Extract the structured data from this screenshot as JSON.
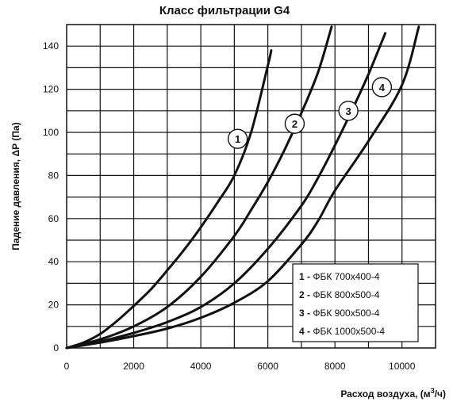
{
  "chart_data": {
    "type": "line",
    "title": "Класс фильтрации G4",
    "xlabel": "Расход воздуха, (м",
    "xlabel_sup": "3",
    "xlabel_end": "/ч)",
    "ylabel": "Падение давления, ΔР (Па)",
    "xlim": [
      0,
      11000
    ],
    "ylim": [
      0,
      150
    ],
    "x_ticks": [
      0,
      2000,
      4000,
      6000,
      8000,
      10000
    ],
    "y_ticks": [
      0,
      20,
      40,
      60,
      80,
      100,
      120,
      140
    ],
    "grid": true,
    "legend_position": "bottom-right",
    "series": [
      {
        "name": "ФБК 700х400-4",
        "legend_number": "1",
        "marker_label": "1",
        "marker_at": [
          5100,
          97
        ],
        "x": [
          0,
          500,
          1000,
          1500,
          2000,
          2500,
          3000,
          3500,
          4000,
          4500,
          5000,
          5500,
          6000,
          6100
        ],
        "y": [
          0,
          2.5,
          6.5,
          12.5,
          19.5,
          27,
          36,
          45.5,
          56,
          67.5,
          80,
          100,
          131,
          138
        ]
      },
      {
        "name": "ФБК 800х500-4",
        "legend_number": "2",
        "marker_label": "2",
        "marker_at": [
          6800,
          104
        ],
        "x": [
          0,
          1000,
          2000,
          3000,
          4000,
          5000,
          5500,
          6000,
          6500,
          7000,
          7500,
          7900
        ],
        "y": [
          0,
          4,
          10,
          19,
          33,
          52,
          64,
          77,
          92,
          109,
          128,
          149
        ]
      },
      {
        "name": "ФБК 900х500-4",
        "legend_number": "3",
        "marker_label": "3",
        "marker_at": [
          8400,
          110
        ],
        "x": [
          0,
          1000,
          2000,
          3000,
          4000,
          5000,
          6000,
          7000,
          7500,
          8000,
          8500,
          9000,
          9500
        ],
        "y": [
          0,
          3,
          7,
          12,
          19,
          30,
          46,
          66,
          79,
          94,
          110,
          127,
          146
        ]
      },
      {
        "name": "ФБК 1000х500-4",
        "legend_number": "4",
        "marker_label": "4",
        "marker_at": [
          9400,
          121
        ],
        "x": [
          0,
          1000,
          2000,
          3000,
          4000,
          5000,
          6000,
          7000,
          7500,
          8000,
          9000,
          10000,
          10500
        ],
        "y": [
          0,
          2.5,
          5.5,
          9,
          14,
          21,
          31,
          48,
          59,
          73,
          96,
          122,
          149
        ]
      }
    ]
  }
}
